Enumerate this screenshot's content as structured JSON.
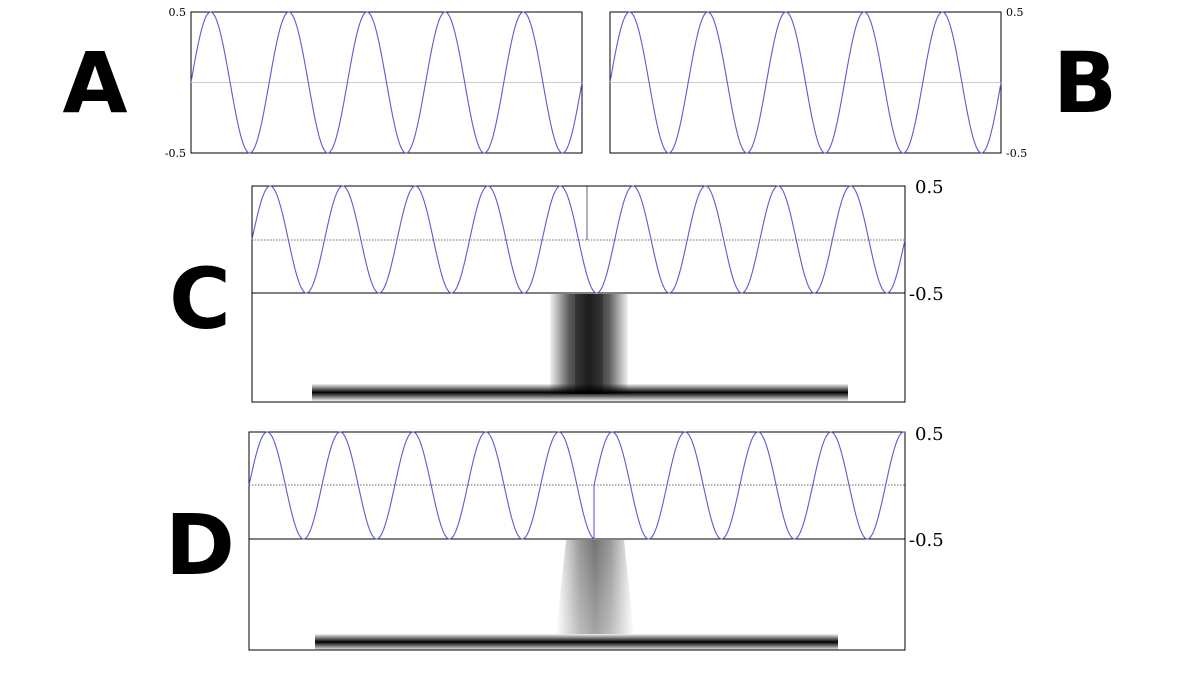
{
  "figure": {
    "panels": [
      {
        "id": "A",
        "label": "A",
        "ytick_top": "0.5",
        "ytick_bottom": "-0.5",
        "chart_type": "line",
        "cycles": 5,
        "ylim": [
          -0.5,
          0.5
        ],
        "waveform": "sine, 5 cycles, amplitude 0.5",
        "has_spectrogram": false,
        "ytick_side": "left"
      },
      {
        "id": "B",
        "label": "B",
        "ytick_top": "0.5",
        "ytick_bottom": "-0.5",
        "chart_type": "line",
        "cycles": 5,
        "ylim": [
          -0.5,
          0.5
        ],
        "waveform": "sine, 5 cycles, amplitude 0.5",
        "has_spectrogram": false,
        "ytick_side": "right"
      },
      {
        "id": "C",
        "label": "C",
        "ytick_top": "0.5",
        "ytick_bottom": "-0.5",
        "chart_type": "line",
        "cycles": 9,
        "ylim": [
          -0.5,
          0.5
        ],
        "waveform": "two concatenated sine segments, continuous join",
        "has_spectrogram": true,
        "ytick_side": "right"
      },
      {
        "id": "D",
        "label": "D",
        "ytick_top": "0.5",
        "ytick_bottom": "-0.5",
        "chart_type": "line",
        "cycles": 9,
        "ylim": [
          -0.5,
          0.5
        ],
        "waveform": "two concatenated sine segments, discontinuous join",
        "has_spectrogram": true,
        "ytick_side": "right"
      }
    ]
  },
  "colors": {
    "wave": "#5b5bd6",
    "zero_line": "#bbbbbb",
    "axis": "#000000"
  },
  "chart_data": [
    {
      "type": "line",
      "title": "",
      "xlabel": "",
      "ylabel": "",
      "ylim": [
        -0.5,
        0.5
      ],
      "cycles": 5
    },
    {
      "type": "line",
      "title": "",
      "xlabel": "",
      "ylabel": "",
      "ylim": [
        -0.5,
        0.5
      ],
      "cycles": 5
    },
    {
      "type": "line",
      "title": "",
      "xlabel": "",
      "ylabel": "",
      "ylim": [
        -0.5,
        0.5
      ],
      "cycles": 9
    },
    {
      "type": "line",
      "title": "",
      "xlabel": "",
      "ylabel": "",
      "ylim": [
        -0.5,
        0.5
      ],
      "cycles": 9
    }
  ]
}
